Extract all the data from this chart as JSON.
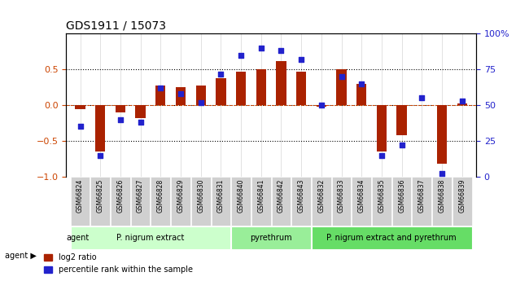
{
  "title": "GDS1911 / 15073",
  "samples": [
    "GSM66824",
    "GSM66825",
    "GSM66826",
    "GSM66827",
    "GSM66828",
    "GSM66829",
    "GSM66830",
    "GSM66831",
    "GSM66840",
    "GSM66841",
    "GSM66842",
    "GSM66843",
    "GSM66832",
    "GSM66833",
    "GSM66834",
    "GSM66835",
    "GSM66836",
    "GSM66837",
    "GSM66838",
    "GSM66839"
  ],
  "log2_ratio": [
    -0.05,
    -0.65,
    -0.1,
    -0.18,
    0.28,
    0.25,
    0.28,
    0.38,
    0.47,
    0.5,
    0.62,
    0.47,
    -0.02,
    0.5,
    0.3,
    -0.65,
    -0.42,
    0.0,
    -0.82,
    0.02
  ],
  "pct_rank": [
    35,
    15,
    40,
    38,
    62,
    58,
    52,
    72,
    85,
    90,
    88,
    82,
    50,
    70,
    65,
    15,
    22,
    55,
    2,
    53
  ],
  "groups": [
    {
      "label": "P. nigrum extract",
      "start": 0,
      "end": 8,
      "color": "#ccffcc"
    },
    {
      "label": "pyrethrum",
      "start": 8,
      "end": 12,
      "color": "#99ee99"
    },
    {
      "label": "P. nigrum extract and pyrethrum",
      "start": 12,
      "end": 20,
      "color": "#66dd66"
    }
  ],
  "bar_color": "#aa2200",
  "dot_color": "#2222cc",
  "ylim_left": [
    -1.0,
    1.0
  ],
  "ylim_right": [
    0,
    100
  ],
  "yticks_left": [
    -1.0,
    -0.5,
    0.0,
    0.5
  ],
  "yticks_right": [
    0,
    25,
    50,
    75,
    100
  ],
  "yticklabels_right": [
    "0",
    "25",
    "50",
    "75",
    "100%"
  ],
  "hlines": [
    0.5,
    0.0,
    -0.5
  ],
  "legend_items": [
    {
      "color": "#aa2200",
      "label": "log2 ratio"
    },
    {
      "color": "#2222cc",
      "label": "percentile rank within the sample"
    }
  ]
}
